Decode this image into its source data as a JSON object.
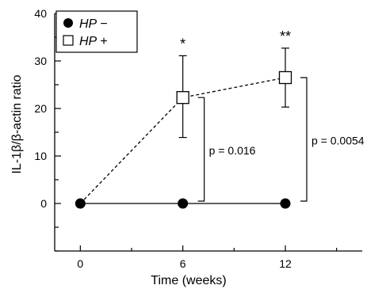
{
  "chart_data": {
    "type": "line",
    "xlabel": "Time (weeks)",
    "ylabel": "IL-1β/β-actin ratio",
    "xlim": [
      -1.5,
      16.5
    ],
    "ylim": [
      -10,
      40
    ],
    "x_ticks": [
      0,
      6,
      12
    ],
    "y_ticks": [
      0,
      10,
      20,
      30,
      40
    ],
    "grid": false,
    "legend_position": "top-left",
    "series": [
      {
        "name": "HP −",
        "marker": "filled-circle",
        "line_style": "solid",
        "x": [
          0,
          6,
          12
        ],
        "y": [
          0,
          0,
          0
        ]
      },
      {
        "name": "HP +",
        "marker": "open-square",
        "line_style": "dashed",
        "x": [
          0,
          6,
          12
        ],
        "y": [
          0,
          22.3,
          26.5
        ],
        "error_upper": [
          null,
          31.1,
          32.7
        ],
        "error_lower": [
          null,
          13.9,
          20.3
        ]
      }
    ],
    "annotations": {
      "significance": [
        {
          "x": 6,
          "label": "*"
        },
        {
          "x": 12,
          "label": "**"
        }
      ],
      "comparisons": [
        {
          "x": 6,
          "label": "p = 0.016"
        },
        {
          "x": 12,
          "label": "p = 0.0054"
        }
      ]
    }
  }
}
